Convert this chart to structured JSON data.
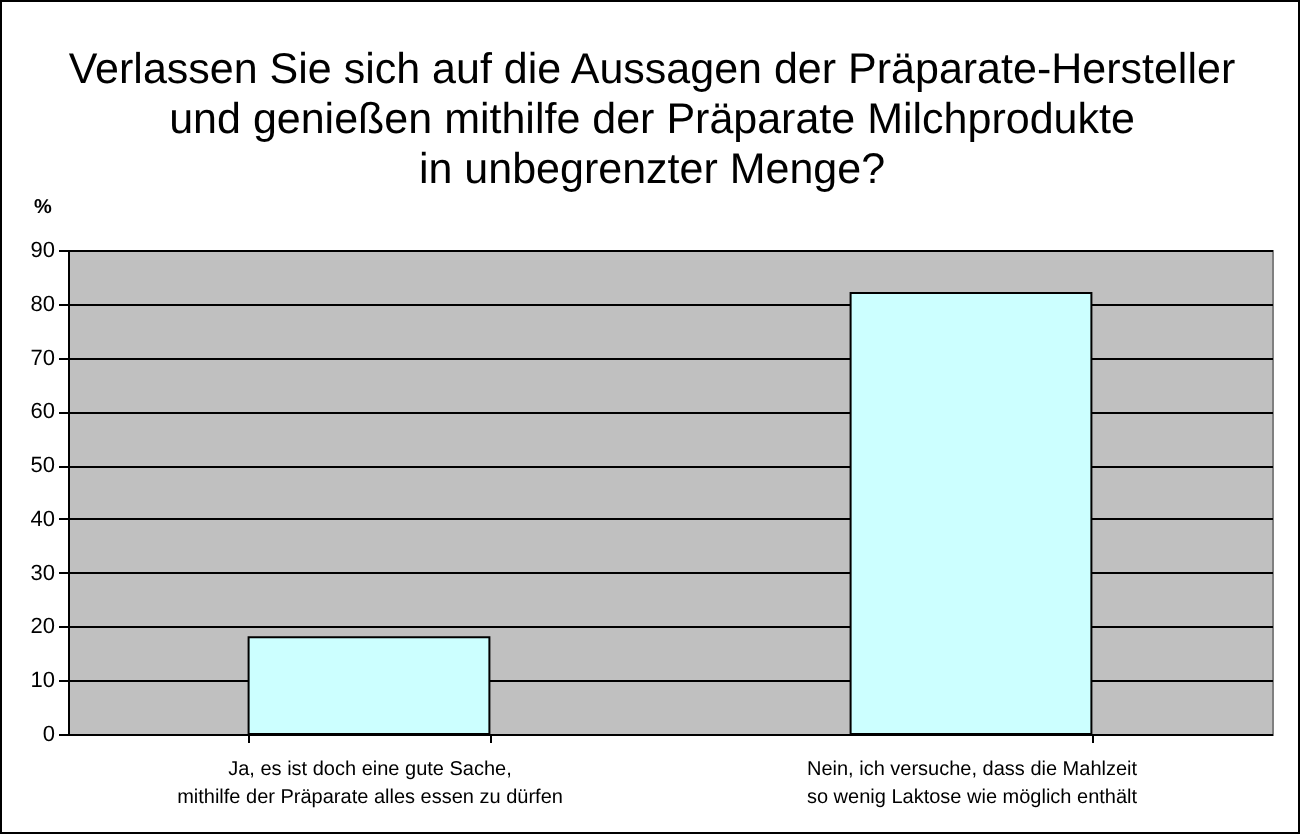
{
  "chart_data": {
    "type": "bar",
    "title": "Verlassen Sie sich auf die Aussagen der Präparate-Hersteller\nund genießen mithilfe der Präparate Milchprodukte\nin unbegrenzter Menge?",
    "ylabel": "%",
    "categories": [
      "Ja, es ist doch eine gute Sache,\nmithilfe der Präparate alles essen zu dürfen",
      "Nein, ich versuche, dass die Mahlzeit\nso wenig Laktose wie möglich enthält"
    ],
    "values": [
      18,
      82
    ],
    "color": "#ccffff",
    "ylim": [
      0,
      90
    ],
    "yticks": [
      0,
      10,
      20,
      30,
      40,
      50,
      60,
      70,
      80,
      90
    ],
    "grid": "y"
  }
}
